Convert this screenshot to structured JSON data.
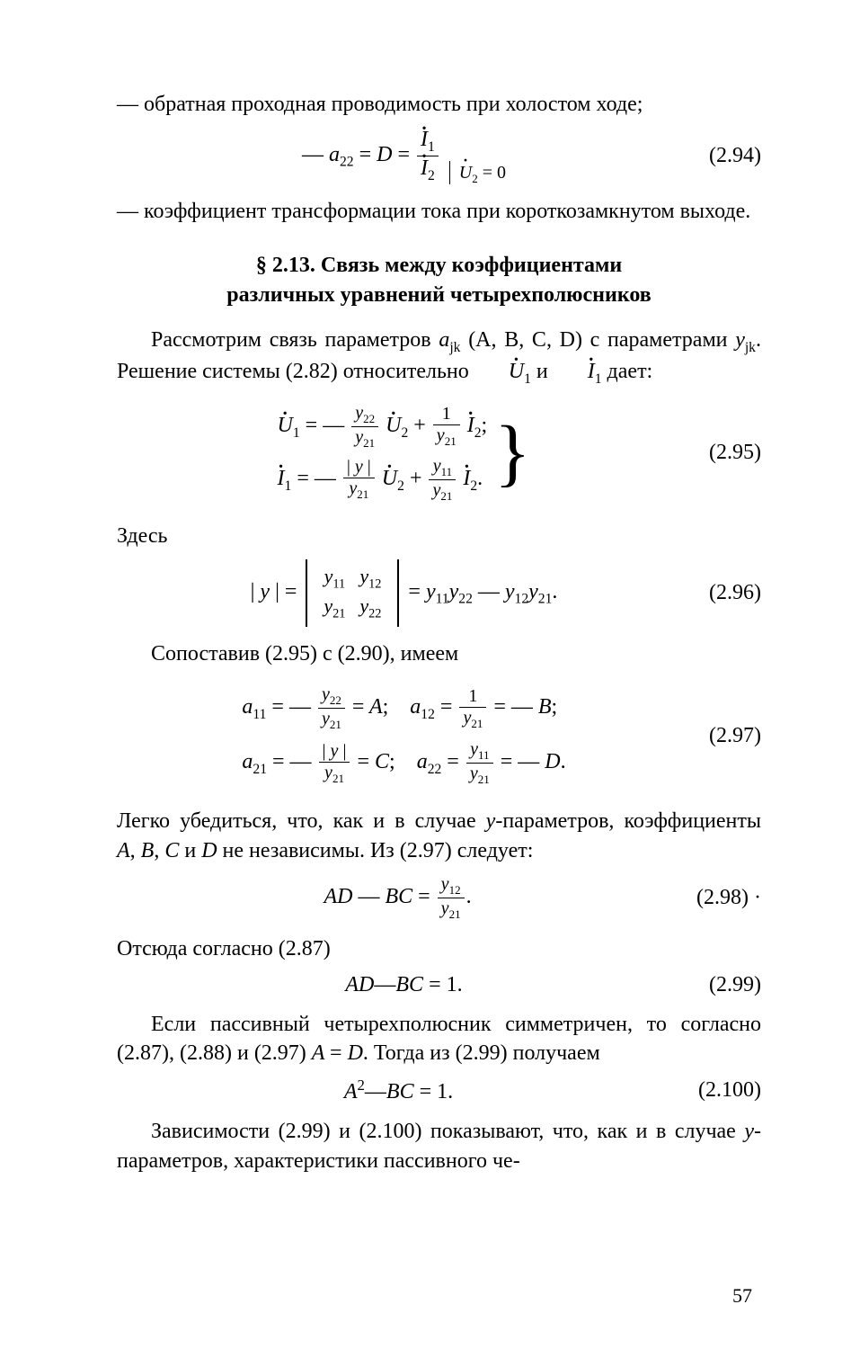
{
  "para1": "— обратная проходная проводимость при холостом ходе;",
  "eq294": {
    "lhs_a": "— a",
    "lhs_sub": "22",
    "eq_D": " = D = ",
    "num": "İ₁",
    "den": "İ₂",
    "cond": "U̇₂ = 0",
    "num_label": "(2.94)"
  },
  "para2": "— коэффициент трансформации тока при короткозамк­нутом выходе.",
  "section_title_l1": "§ 2.13. Связь между коэффициентами",
  "section_title_l2": "различных уравнений четырехполюсников",
  "para3_a": "Рассмотрим связь параметров ",
  "para3_b": " (A, B, C, D) с па­раметрами ",
  "para3_c": ". Решение системы (2.82) относительно ",
  "para3_d": " и ",
  "para3_e": " дает:",
  "ajk": "aⱼₖ",
  "yjk": "yⱼₖ",
  "U1dot": "U̇₁",
  "I1dot": "İ₁",
  "eq295": {
    "num_label": "(2.95)"
  },
  "here": "Здесь",
  "eq296": {
    "num_label": "(2.96)"
  },
  "para4": "Сопоставив (2.95) с (2.90), имеем",
  "eq297": {
    "num_label": "(2.97)"
  },
  "para5_a": "Легко убедиться, что, как и в случае ",
  "para5_b": "-параметров, ко­эффициенты ",
  "para5_c": " и ",
  "para5_d": " не независимы. Из (2.97) сле­дует:",
  "y_ital": "y",
  "ABC": "A, B, C",
  "D_ital": "D",
  "eq298": {
    "text": "AD — BC = ",
    "num_label": "(2.98)"
  },
  "para6": "Отсюда согласно (2.87)",
  "eq299": {
    "text": "AD—BC = 1.",
    "num_label": "(2.99)"
  },
  "para7_a": "Если пассивный четырехполюсник симметричен, то согласно (2.87), (2.88) и (2.97) ",
  "para7_b": ". Тогда из (2.99) получаем",
  "AeqD": "A = D",
  "eq2100": {
    "text": "A²—BC = 1.",
    "num_label": "(2.100)"
  },
  "para8_a": "Зависимости (2.99) и (2.100) показывают, что, как и в случае ",
  "para8_b": "-параметров, характеристики пассивного че-",
  "page_number": "57"
}
